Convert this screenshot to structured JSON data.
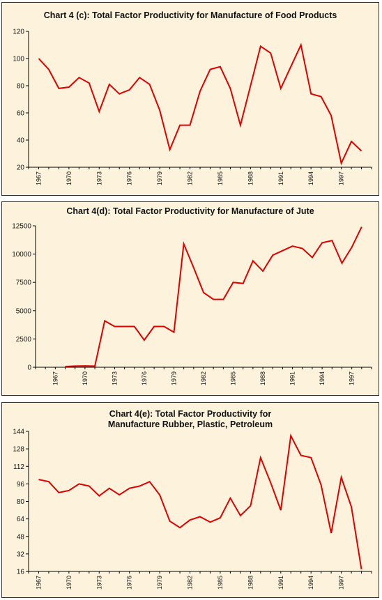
{
  "colors": {
    "line": "#e00000",
    "panel_bg": "#fdf3dc",
    "axis": "#000000"
  },
  "chart_data": [
    {
      "type": "line",
      "title": "Chart 4 (c): Total Factor Productivity for Manufacture of Food Products",
      "xlabel": "",
      "ylabel": "",
      "ylim": [
        20,
        120
      ],
      "yticks": [
        20,
        40,
        60,
        80,
        100,
        120
      ],
      "xlim": [
        1966,
        2000
      ],
      "xticks": [
        1967,
        1970,
        1973,
        1976,
        1979,
        1982,
        1985,
        1988,
        1991,
        1994,
        1997
      ],
      "series": [
        {
          "x": [
            1967,
            1968,
            1969,
            1970,
            1971,
            1972,
            1973,
            1974,
            1975,
            1976,
            1977,
            1978,
            1979,
            1980,
            1981,
            1982,
            1983,
            1984,
            1985,
            1986,
            1987,
            1988,
            1989,
            1990,
            1991,
            1992,
            1993,
            1994,
            1995,
            1996,
            1997,
            1998,
            1999
          ],
          "values": [
            100,
            92,
            78,
            79,
            86,
            82,
            61,
            81,
            74,
            77,
            86,
            81,
            62,
            33,
            51,
            51,
            76,
            92,
            94,
            78,
            51,
            80,
            109,
            104,
            78,
            94,
            110,
            74,
            72,
            58,
            23,
            39,
            32
          ]
        }
      ]
    },
    {
      "type": "line",
      "title": "Chart 4(d): Total Factor Productivity for Manufacture of Jute",
      "xlabel": "",
      "ylabel": "",
      "ylim": [
        0,
        12500
      ],
      "yticks": [
        0,
        2500,
        5000,
        7500,
        10000,
        12500
      ],
      "xlim": [
        1965,
        1999
      ],
      "xticks": [
        1967,
        1970,
        1973,
        1976,
        1979,
        1982,
        1985,
        1988,
        1991,
        1994,
        1997
      ],
      "series": [
        {
          "x": [
            1968,
            1969,
            1970,
            1971,
            1972,
            1973,
            1974,
            1975,
            1976,
            1977,
            1978,
            1979,
            1980,
            1981,
            1982,
            1983,
            1984,
            1985,
            1986,
            1987,
            1988,
            1989,
            1990,
            1991,
            1992,
            1993,
            1994,
            1995,
            1996,
            1997,
            1998
          ],
          "values": [
            60,
            100,
            120,
            100,
            4100,
            3600,
            3600,
            3600,
            2400,
            3600,
            3600,
            3100,
            10900,
            8800,
            6600,
            6000,
            6000,
            7500,
            7400,
            9400,
            8500,
            9900,
            10300,
            10700,
            10500,
            9700,
            11000,
            11200,
            9200,
            10600,
            12400
          ]
        }
      ]
    },
    {
      "type": "line",
      "title": "Chart 4(e): Total Factor Productivity for Manufacture Rubber, Plastic, Petroleum",
      "xlabel": "",
      "ylabel": "",
      "ylim": [
        16,
        144
      ],
      "yticks": [
        16,
        32,
        48,
        64,
        80,
        96,
        112,
        128,
        144
      ],
      "xlim": [
        1966,
        2000
      ],
      "xticks": [
        1967,
        1970,
        1973,
        1976,
        1979,
        1982,
        1985,
        1988,
        1991,
        1994,
        1997
      ],
      "series": [
        {
          "x": [
            1967,
            1968,
            1969,
            1970,
            1971,
            1972,
            1973,
            1974,
            1975,
            1976,
            1977,
            1978,
            1979,
            1980,
            1981,
            1982,
            1983,
            1984,
            1985,
            1986,
            1987,
            1988,
            1989,
            1990,
            1991,
            1992,
            1993,
            1994,
            1995,
            1996,
            1997,
            1998,
            1999
          ],
          "values": [
            100,
            98,
            88,
            90,
            96,
            94,
            85,
            92,
            86,
            92,
            94,
            98,
            86,
            62,
            56,
            63,
            66,
            61,
            65,
            83,
            67,
            76,
            120,
            97,
            72,
            140,
            122,
            120,
            95,
            51,
            102,
            75,
            18
          ]
        }
      ]
    }
  ]
}
